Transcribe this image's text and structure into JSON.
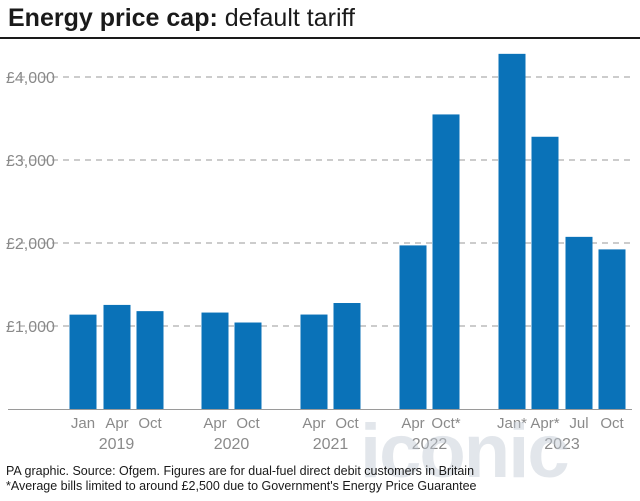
{
  "header": {
    "title_bold": "Energy price cap:",
    "title_light": "default tariff"
  },
  "chart_data": {
    "type": "bar",
    "title": "Energy price cap: default tariff",
    "categories": [
      "Jan",
      "Apr",
      "Oct",
      "Apr",
      "Oct",
      "Apr",
      "Oct",
      "Apr",
      "Oct*",
      "Jan*",
      "Apr*",
      "Jul",
      "Oct"
    ],
    "groups": [
      "2019",
      "2019",
      "2019",
      "2020",
      "2020",
      "2021",
      "2021",
      "2022",
      "2022",
      "2023",
      "2023",
      "2023",
      "2023"
    ],
    "values": [
      1137,
      1254,
      1179,
      1162,
      1042,
      1138,
      1277,
      1971,
      3549,
      4279,
      3280,
      2074,
      1923
    ],
    "year_labels": [
      "2019",
      "2020",
      "2021",
      "2022",
      "2023"
    ],
    "ylim": [
      0,
      4300
    ],
    "yticks": [
      1000,
      2000,
      3000,
      4000
    ],
    "ytick_labels": [
      "£1,000",
      "£2,000",
      "£3,000",
      "£4,000"
    ],
    "grid": true,
    "bar_color": "#0a72b8",
    "grid_color": "#9a9a9a"
  },
  "footer": {
    "source": "PA graphic. Source: Ofgem. Figures are for dual-fuel direct debit customers in Britain",
    "note": "*Average bills limited to around £2,500 due to Government's Energy Price Guarantee"
  },
  "watermark": "iconic"
}
